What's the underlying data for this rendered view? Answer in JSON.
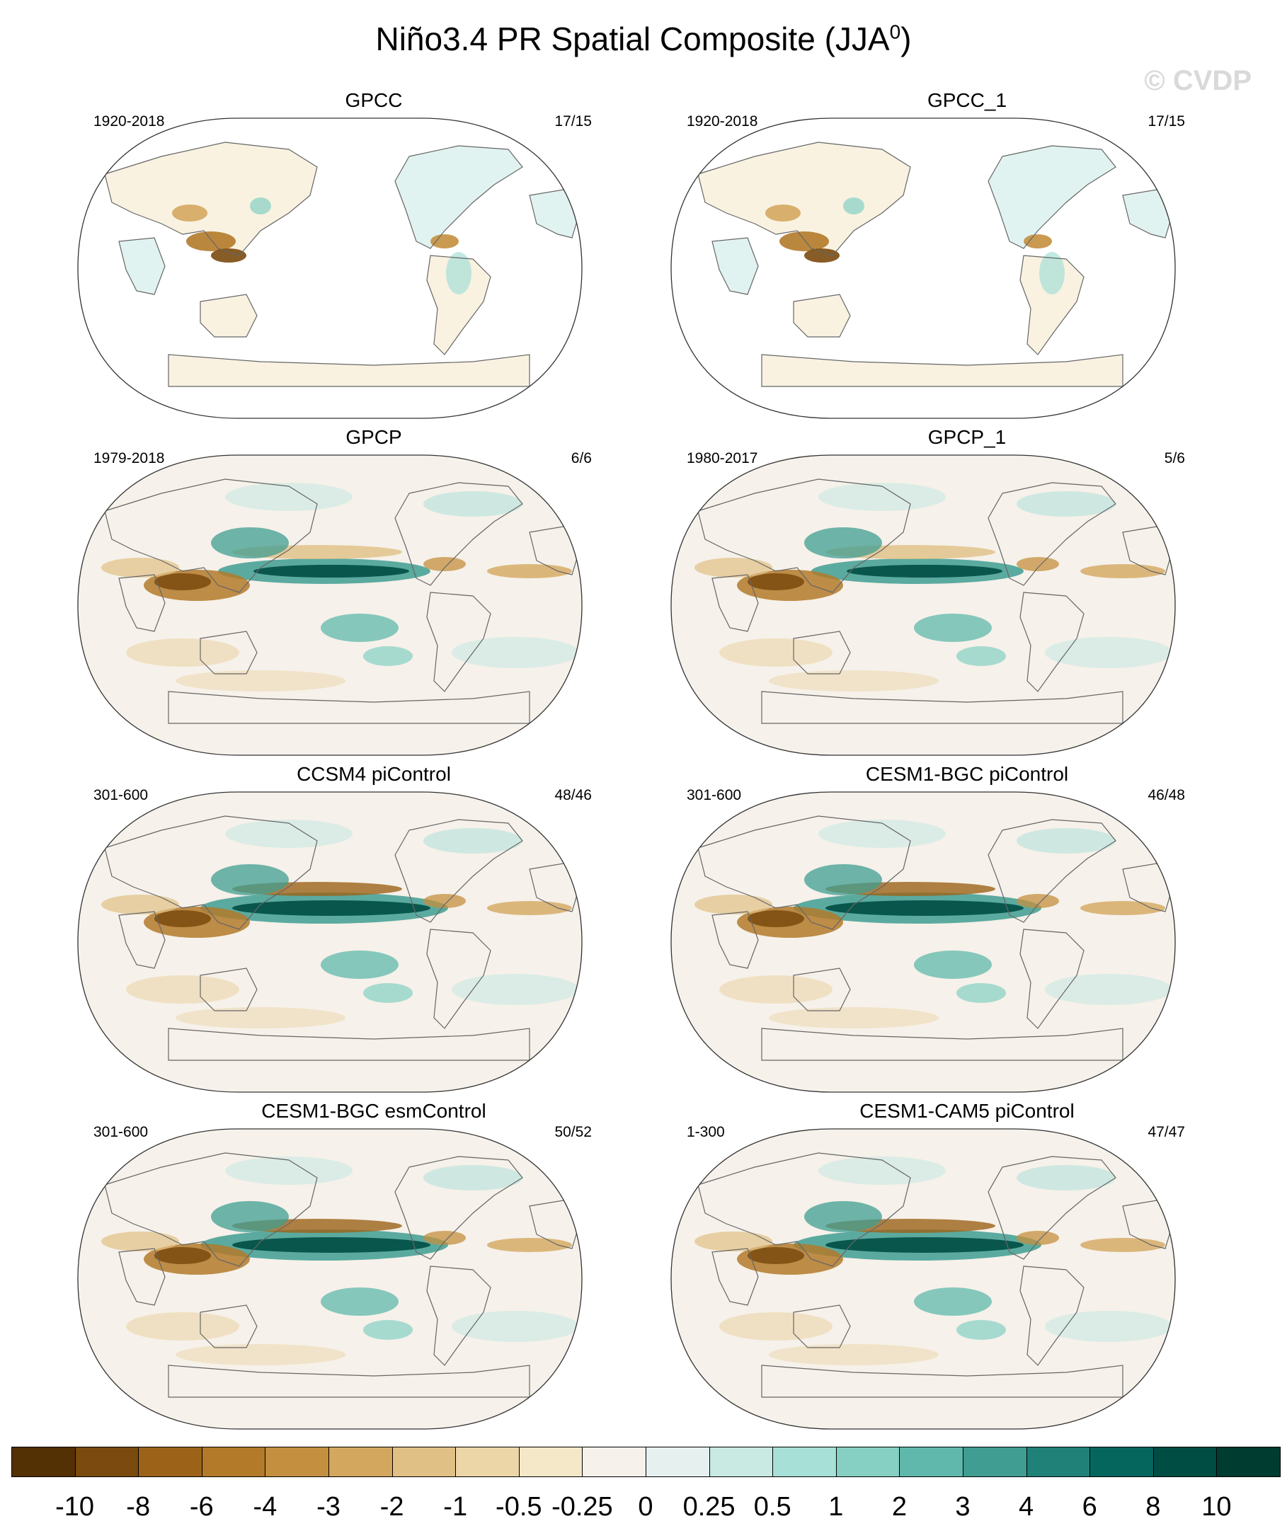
{
  "figure": {
    "title_main": "Niño3.4 PR Spatial Composite (JJA",
    "title_sup": "0",
    "title_close": ")",
    "watermark": "© CVDP"
  },
  "panels": [
    {
      "title": "GPCC",
      "period": "1920-2018",
      "count": "17/15",
      "dataset_type": "land-only"
    },
    {
      "title": "GPCC_1",
      "period": "1920-2018",
      "count": "17/15",
      "dataset_type": "land-only"
    },
    {
      "title": "GPCP",
      "period": "1979-2018",
      "count": "6/6",
      "dataset_type": "global"
    },
    {
      "title": "GPCP_1",
      "period": "1980-2017",
      "count": "5/6",
      "dataset_type": "global"
    },
    {
      "title": "CCSM4 piControl",
      "period": "301-600",
      "count": "48/46",
      "dataset_type": "global"
    },
    {
      "title": "CESM1-BGC piControl",
      "period": "301-600",
      "count": "46/48",
      "dataset_type": "global"
    },
    {
      "title": "CESM1-BGC esmControl",
      "period": "301-600",
      "count": "50/52",
      "dataset_type": "global"
    },
    {
      "title": "CESM1-CAM5 piControl",
      "period": "1-300",
      "count": "47/47",
      "dataset_type": "global"
    }
  ],
  "colorbar": {
    "labels": [
      "-10",
      "-8",
      "-6",
      "-4",
      "-3",
      "-2",
      "-1",
      "-0.5",
      "-0.25",
      "0",
      "0.25",
      "0.5",
      "1",
      "2",
      "3",
      "4",
      "6",
      "8",
      "10"
    ],
    "colors": [
      "#543005",
      "#7a4a0e",
      "#9c6318",
      "#b37a2a",
      "#c48f3e",
      "#d4a75f",
      "#e1c085",
      "#ecd6a8",
      "#f4e8c8",
      "#f6f1ea",
      "#e6f1ef",
      "#c9e9e3",
      "#a6e0d7",
      "#85d0c3",
      "#5fb8ab",
      "#3f9d92",
      "#1f8178",
      "#05665e",
      "#004d43",
      "#003c30"
    ]
  }
}
